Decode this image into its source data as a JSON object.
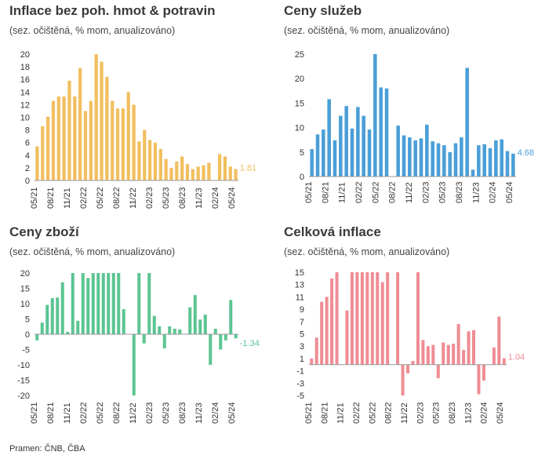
{
  "source": "Pramen: ČNB, ČBA",
  "chart_data": [
    {
      "type": "bar",
      "title": "Inflace bez poh. hmot & potravin",
      "subtitle": "(sez. očištěná, % mom, anualizováno)",
      "color": "#f2bf5f",
      "ylim": [
        0,
        20
      ],
      "yticks": [
        0,
        2,
        4,
        6,
        8,
        10,
        12,
        14,
        16,
        18,
        20
      ],
      "xticks": [
        "05/21",
        "08/21",
        "11/21",
        "02/22",
        "05/22",
        "08/22",
        "11/22",
        "02/23",
        "05/23",
        "08/23",
        "11/23",
        "02/24",
        "05/24"
      ],
      "values": [
        5.4,
        8.6,
        10.1,
        12.6,
        13.3,
        13.3,
        15.8,
        13.3,
        17.8,
        11.0,
        12.6,
        20.0,
        18.8,
        16.4,
        12.6,
        11.4,
        11.4,
        14.0,
        12.0,
        6.2,
        8.0,
        6.4,
        6.0,
        5.0,
        3.4,
        2.0,
        3.0,
        3.8,
        2.6,
        1.8,
        2.2,
        2.4,
        2.8,
        0.0,
        4.2,
        3.8,
        2.2,
        1.81
      ],
      "last_label": "1.81"
    },
    {
      "type": "bar",
      "title": "Ceny služeb",
      "subtitle": "(sez. očištěná, % mom, anualizováno)",
      "color": "#4a9fd8",
      "ylim": [
        0,
        25
      ],
      "yticks": [
        0,
        5,
        10,
        15,
        20,
        25
      ],
      "xticks": [
        "05/21",
        "08/21",
        "11/21",
        "02/22",
        "05/22",
        "08/22",
        "11/22",
        "02/23",
        "05/23",
        "08/23",
        "11/23",
        "02/24",
        "05/24"
      ],
      "values": [
        5.6,
        8.6,
        9.6,
        15.8,
        7.4,
        12.4,
        14.4,
        9.8,
        14.2,
        12.4,
        9.6,
        25.0,
        18.2,
        18.0,
        0.0,
        10.4,
        8.4,
        8.0,
        7.4,
        7.8,
        10.6,
        7.2,
        6.8,
        6.4,
        5.0,
        6.8,
        8.0,
        22.2,
        1.4,
        6.4,
        6.6,
        5.8,
        7.4,
        7.6,
        5.2,
        4.68
      ],
      "last_label": "4.68"
    },
    {
      "type": "bar",
      "title": "Ceny zboží",
      "subtitle": "(sez. očištěná, % mom, anualizováno)",
      "color": "#5bc592",
      "ylim": [
        -20,
        20
      ],
      "yticks": [
        -20,
        -15,
        -10,
        -5,
        0,
        5,
        10,
        15,
        20
      ],
      "xticks": [
        "05/21",
        "08/21",
        "11/21",
        "02/22",
        "05/22",
        "08/22",
        "11/22",
        "02/23",
        "05/23",
        "08/23",
        "11/23",
        "02/24",
        "05/24"
      ],
      "values": [
        -2.0,
        3.8,
        9.6,
        11.8,
        12.0,
        17.0,
        0.8,
        20.0,
        4.4,
        20.0,
        18.4,
        20.0,
        20.0,
        20.0,
        20.0,
        20.0,
        20.0,
        8.2,
        0.0,
        -20.0,
        20.0,
        -3.0,
        20.0,
        6.0,
        2.6,
        -4.6,
        2.6,
        1.8,
        1.6,
        0.0,
        8.8,
        12.8,
        4.8,
        6.4,
        -10.0,
        1.8,
        -5.0,
        -2.0,
        11.2,
        -1.34
      ],
      "last_label": "-1.34"
    },
    {
      "type": "bar",
      "title": "Celková inflace",
      "subtitle": "(sez. očištěná, % mom, anualizováno)",
      "color": "#ef8c94",
      "ylim": [
        -5,
        15
      ],
      "yticks": [
        -5,
        -3,
        -1,
        1,
        3,
        5,
        7,
        9,
        11,
        13,
        15
      ],
      "xticks": [
        "05/21",
        "08/21",
        "11/21",
        "02/22",
        "05/22",
        "08/22",
        "11/22",
        "02/23",
        "05/23",
        "08/23",
        "11/23",
        "02/24",
        "05/24"
      ],
      "values": [
        1.0,
        4.4,
        10.2,
        11.0,
        14.0,
        15.0,
        0.0,
        8.8,
        15.0,
        15.0,
        15.0,
        15.0,
        15.0,
        15.0,
        13.4,
        15.0,
        0.0,
        15.0,
        -5.0,
        -1.4,
        0.6,
        15.0,
        4.0,
        3.0,
        3.2,
        -2.2,
        3.6,
        3.2,
        3.4,
        6.6,
        2.4,
        5.4,
        5.6,
        -4.8,
        -2.6,
        0.0,
        2.8,
        7.8,
        1.04
      ],
      "last_label": "1.04"
    }
  ]
}
